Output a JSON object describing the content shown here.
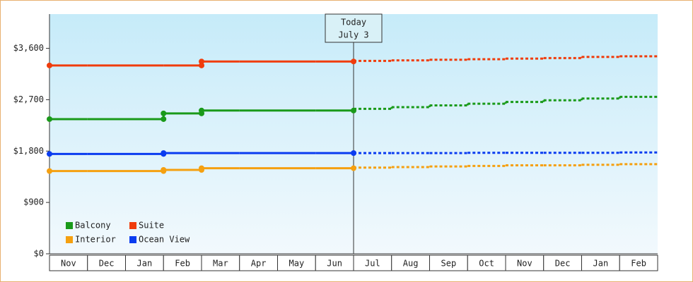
{
  "chart_data": {
    "type": "step-line",
    "categories": [
      "Nov",
      "Dec",
      "Jan",
      "Feb",
      "Mar",
      "Apr",
      "May",
      "Jun",
      "Jul",
      "Aug",
      "Sep",
      "Oct",
      "Nov",
      "Dec",
      "Jan",
      "Feb"
    ],
    "ylim": [
      0,
      4200
    ],
    "yticks": [
      {
        "value": 0,
        "label": "$0"
      },
      {
        "value": 900,
        "label": "$900"
      },
      {
        "value": 1800,
        "label": "$1,800"
      },
      {
        "value": 2700,
        "label": "$2,700"
      },
      {
        "value": 3600,
        "label": "$3,600"
      }
    ],
    "annotation": {
      "title": "Today",
      "date": "July 3"
    },
    "series": [
      {
        "name": "Balcony",
        "color": "#1a9a1a",
        "values": [
          2360,
          2360,
          2360,
          2460,
          2510,
          2510,
          2510,
          2510,
          null,
          null,
          null,
          null,
          null,
          null,
          null,
          null
        ],
        "forecast": [
          null,
          null,
          null,
          null,
          null,
          null,
          null,
          null,
          2540,
          2570,
          2600,
          2630,
          2660,
          2690,
          2720,
          2750
        ]
      },
      {
        "name": "Suite",
        "color": "#f03c0c",
        "values": [
          3300,
          3300,
          3300,
          3300,
          3370,
          3370,
          3370,
          3370,
          null,
          null,
          null,
          null,
          null,
          null,
          null,
          null
        ],
        "forecast": [
          null,
          null,
          null,
          null,
          null,
          null,
          null,
          null,
          3380,
          3390,
          3400,
          3410,
          3420,
          3430,
          3450,
          3460
        ]
      },
      {
        "name": "Interior",
        "color": "#f5a010",
        "values": [
          1450,
          1450,
          1450,
          1470,
          1500,
          1500,
          1500,
          1500,
          null,
          null,
          null,
          null,
          null,
          null,
          null,
          null
        ],
        "forecast": [
          null,
          null,
          null,
          null,
          null,
          null,
          null,
          null,
          1510,
          1520,
          1530,
          1540,
          1550,
          1550,
          1560,
          1570
        ]
      },
      {
        "name": "Ocean View",
        "color": "#0a3cf0",
        "values": [
          1750,
          1750,
          1750,
          1765,
          1765,
          1765,
          1765,
          1765,
          null,
          null,
          null,
          null,
          null,
          null,
          null,
          null
        ],
        "forecast": [
          null,
          null,
          null,
          null,
          null,
          null,
          null,
          null,
          1765,
          1765,
          1765,
          1770,
          1770,
          1770,
          1770,
          1775
        ]
      }
    ]
  }
}
